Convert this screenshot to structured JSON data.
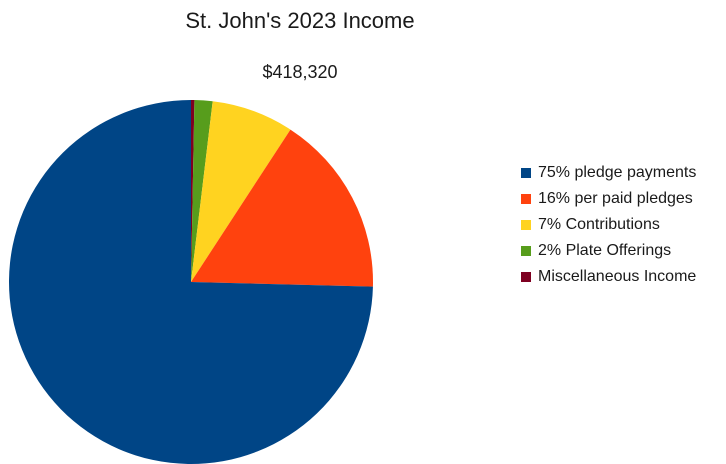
{
  "chart_data": {
    "type": "pie",
    "title": "St. John's 2023 Income",
    "subtitle": "$418,320",
    "start_angle_deg": 0,
    "direction": "clockwise",
    "legend_position": "right",
    "slices": [
      {
        "label": "Miscellaneous Income",
        "legend_text": "Miscellaneous Income",
        "percent": 0.3,
        "color": "#7e0021"
      },
      {
        "label": "Plate Offerings",
        "legend_text": "2% Plate Offerings",
        "percent": 1.6,
        "color": "#579d1c"
      },
      {
        "label": "Contributions",
        "legend_text": "7% Contributions",
        "percent": 7.3,
        "color": "#ffd320"
      },
      {
        "label": "per paid pledges",
        "legend_text": "16% per paid pledges",
        "percent": 16.2,
        "color": "#ff420e"
      },
      {
        "label": "pledge payments",
        "legend_text": "75% pledge payments",
        "percent": 74.6,
        "color": "#004586"
      }
    ],
    "legend_order": [
      "75% pledge payments",
      "16% per paid pledges",
      "7% Contributions",
      "2% Plate Offerings",
      "Miscellaneous Income"
    ]
  }
}
